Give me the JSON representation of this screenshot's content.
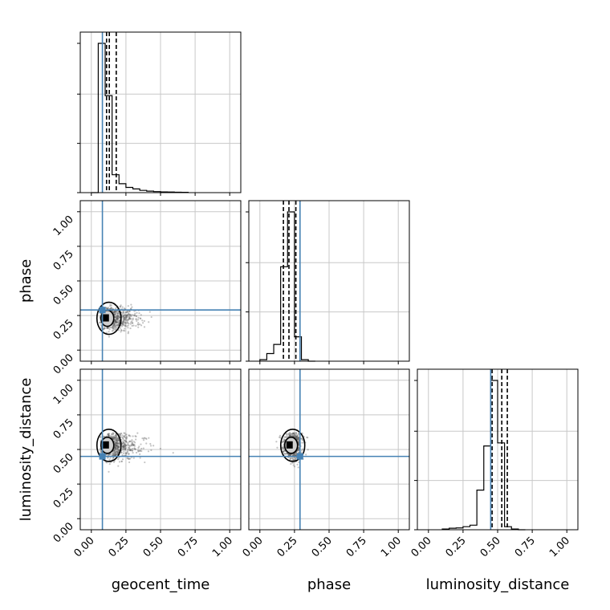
{
  "chart_data": {
    "type": "corner",
    "parameters": [
      "geocent_time",
      "phase",
      "luminosity_distance"
    ],
    "axis_range": [
      -0.08,
      1.08
    ],
    "ticks": [
      0.0,
      0.25,
      0.5,
      0.75,
      1.0
    ],
    "tick_labels": [
      "0.00",
      "0.25",
      "0.50",
      "0.75",
      "1.00"
    ],
    "truths": {
      "geocent_time": 0.08,
      "phase": 0.29,
      "luminosity_distance": 0.45
    },
    "grid": true,
    "colors": {
      "truth": "#4682b4",
      "hist": "#000000",
      "points": "#555555",
      "grid": "#c8c8c8"
    },
    "histograms": [
      {
        "parameter": "geocent_time",
        "bin_edges": [
          0.0,
          0.05,
          0.1,
          0.15,
          0.2,
          0.25,
          0.3,
          0.35,
          0.4,
          0.45,
          0.5,
          0.55,
          0.6,
          0.65,
          0.7
        ],
        "counts": [
          0,
          1.0,
          0.65,
          0.12,
          0.06,
          0.035,
          0.025,
          0.015,
          0.01,
          0.007,
          0.005,
          0.004,
          0.003,
          0.002
        ],
        "quantiles": [
          0.11,
          0.13,
          0.18
        ]
      },
      {
        "parameter": "phase",
        "bin_edges": [
          0.0,
          0.05,
          0.1,
          0.15,
          0.2,
          0.25,
          0.3,
          0.35,
          0.4
        ],
        "counts": [
          0.01,
          0.05,
          0.11,
          0.62,
          0.98,
          0.16,
          0.01,
          0.0
        ],
        "quantiles": [
          0.17,
          0.21,
          0.26
        ]
      },
      {
        "parameter": "luminosity_distance",
        "bin_edges": [
          0.1,
          0.15,
          0.2,
          0.25,
          0.3,
          0.35,
          0.4,
          0.45,
          0.5,
          0.55,
          0.6,
          0.65,
          0.7
        ],
        "counts": [
          0.005,
          0.01,
          0.012,
          0.02,
          0.03,
          0.26,
          0.55,
          0.98,
          0.57,
          0.02,
          0.005,
          0.0
        ],
        "quantiles": [
          0.46,
          0.53,
          0.57
        ]
      }
    ],
    "scatter_panels": [
      {
        "x": "geocent_time",
        "y": "phase",
        "center": [
          0.11,
          0.23
        ],
        "spread": [
          0.2,
          0.06
        ],
        "x_extent": [
          0.06,
          0.65
        ],
        "y_extent": [
          0.0,
          0.33
        ]
      },
      {
        "x": "geocent_time",
        "y": "luminosity_distance",
        "center": [
          0.11,
          0.53
        ],
        "spread": [
          0.22,
          0.08
        ],
        "x_extent": [
          0.06,
          0.65
        ],
        "y_extent": [
          0.0,
          0.62
        ]
      },
      {
        "x": "phase",
        "y": "luminosity_distance",
        "center": [
          0.22,
          0.53
        ],
        "spread": [
          0.06,
          0.08
        ],
        "x_extent": [
          0.0,
          0.35
        ],
        "y_extent": [
          0.0,
          0.62
        ]
      }
    ]
  }
}
